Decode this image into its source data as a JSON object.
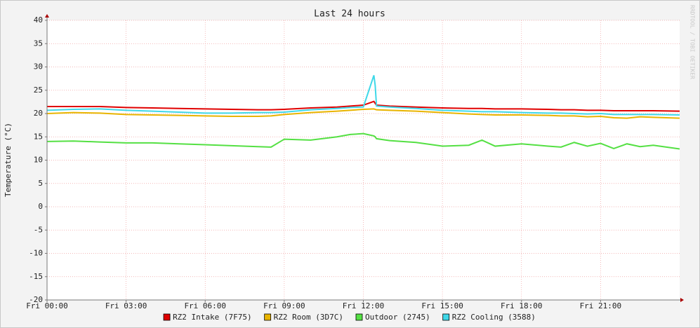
{
  "chart_data": {
    "type": "line",
    "title": "Last 24 hours",
    "y_label": "Temperature (°C)",
    "watermark": "RRDTOOL / TOBI OETIKER",
    "x": [
      0,
      1,
      2,
      3,
      4,
      5,
      6,
      7,
      8,
      8.5,
      9,
      10,
      11,
      11.5,
      12,
      12.4,
      12.45,
      12.5,
      13,
      14,
      15,
      16,
      16.5,
      17,
      18,
      19,
      19.5,
      20,
      20.5,
      21,
      21.5,
      22,
      22.5,
      23,
      24
    ],
    "series": [
      {
        "name": "RZ2 Intake (7F75)",
        "color": "#e00000",
        "values": [
          21.5,
          21.5,
          21.5,
          21.3,
          21.2,
          21.1,
          21,
          20.9,
          20.8,
          20.8,
          20.9,
          21.2,
          21.4,
          21.6,
          21.8,
          22.6,
          22.2,
          21.8,
          21.6,
          21.4,
          21.2,
          21.1,
          21.1,
          21,
          21,
          20.9,
          20.8,
          20.8,
          20.7,
          20.7,
          20.6,
          20.6,
          20.6,
          20.6,
          20.5
        ]
      },
      {
        "name": "RZ2 Room (3D7C)",
        "color": "#e8b400",
        "values": [
          20,
          20.2,
          20.1,
          19.8,
          19.7,
          19.6,
          19.5,
          19.4,
          19.4,
          19.5,
          19.8,
          20.2,
          20.5,
          20.7,
          20.9,
          21,
          20.9,
          20.8,
          20.7,
          20.5,
          20.2,
          19.9,
          19.8,
          19.7,
          19.7,
          19.6,
          19.5,
          19.5,
          19.3,
          19.4,
          19.1,
          19,
          19.3,
          19.2,
          19
        ]
      },
      {
        "name": "Outdoor (2745)",
        "color": "#54e043",
        "values": [
          14,
          14.1,
          13.9,
          13.7,
          13.7,
          13.5,
          13.3,
          13.1,
          12.9,
          12.8,
          14.5,
          14.3,
          15,
          15.5,
          15.7,
          15.2,
          15,
          14.6,
          14.2,
          13.8,
          13,
          13.2,
          14.3,
          13,
          13.5,
          13,
          12.8,
          13.8,
          13,
          13.6,
          12.5,
          13.5,
          12.9,
          13.2,
          12.4
        ]
      },
      {
        "name": "RZ2 Cooling (3588)",
        "color": "#3fd8e8",
        "values": [
          20.7,
          20.9,
          21,
          20.7,
          20.5,
          20.3,
          20.1,
          20.1,
          20.2,
          20.2,
          20.3,
          20.8,
          21.1,
          21.3,
          21.4,
          28.2,
          26,
          21.6,
          21.4,
          21.1,
          20.7,
          20.5,
          20.4,
          20.4,
          20.2,
          20.1,
          20.1,
          20,
          19.9,
          20,
          19.8,
          19.8,
          19.8,
          19.8,
          19.7
        ]
      }
    ],
    "xlim": [
      0,
      24
    ],
    "xticks": [
      {
        "value": 0,
        "label": "Fri 00:00"
      },
      {
        "value": 3,
        "label": "Fri 03:00"
      },
      {
        "value": 6,
        "label": "Fri 06:00"
      },
      {
        "value": 9,
        "label": "Fri 09:00"
      },
      {
        "value": 12,
        "label": "Fri 12:00"
      },
      {
        "value": 15,
        "label": "Fri 15:00"
      },
      {
        "value": 18,
        "label": "Fri 18:00"
      },
      {
        "value": 21,
        "label": "Fri 21:00"
      }
    ],
    "ylim": [
      -20,
      40
    ],
    "yticks": [
      -20,
      -15,
      -10,
      -5,
      0,
      5,
      10,
      15,
      20,
      25,
      30,
      35,
      40
    ],
    "grid": true
  }
}
